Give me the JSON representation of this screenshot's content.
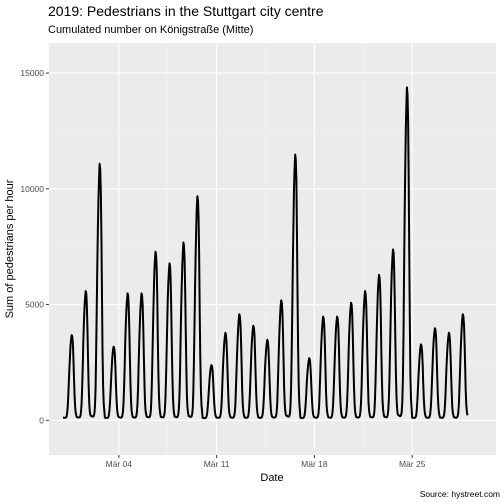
{
  "chart_data": {
    "type": "line",
    "title": "2019: Pedestrians in the Stuttgart city centre",
    "subtitle": "Cumulated number on Königstraße (Mitte)",
    "xlabel": "Date",
    "ylabel": "Sum of pedestrians per hour",
    "caption": "Source: hystreet.com",
    "x_ticks": [
      "Mär 04",
      "Mär 11",
      "Mär 18",
      "Mär 25"
    ],
    "x_tick_values": [
      "2019-03-04",
      "2019-03-11",
      "2019-03-18",
      "2019-03-25"
    ],
    "xlim": [
      "2019-02-27",
      "2019-03-31"
    ],
    "ylim": [
      -1500,
      16300
    ],
    "y_ticks": [
      0,
      5000,
      10000,
      15000
    ],
    "y_tick_labels": [
      "0",
      "5000",
      "10000",
      "15000"
    ],
    "grid": true,
    "series_color": "#000000",
    "series": [
      {
        "resolution": "hourly",
        "daily": [
          {
            "date": "2019-02-28",
            "peak": 3600
          },
          {
            "date": "2019-03-01",
            "peak": 5500
          },
          {
            "date": "2019-03-02",
            "peak": 11000
          },
          {
            "date": "2019-03-03",
            "peak": 3100
          },
          {
            "date": "2019-03-04",
            "peak": 5400
          },
          {
            "date": "2019-03-05",
            "peak": 5400
          },
          {
            "date": "2019-03-06",
            "peak": 7200
          },
          {
            "date": "2019-03-07",
            "peak": 6700
          },
          {
            "date": "2019-03-08",
            "peak": 7600
          },
          {
            "date": "2019-03-09",
            "peak": 9600
          },
          {
            "date": "2019-03-10",
            "peak": 2300
          },
          {
            "date": "2019-03-11",
            "peak": 3700
          },
          {
            "date": "2019-03-12",
            "peak": 4500
          },
          {
            "date": "2019-03-13",
            "peak": 4000
          },
          {
            "date": "2019-03-14",
            "peak": 3400
          },
          {
            "date": "2019-03-15",
            "peak": 5100
          },
          {
            "date": "2019-03-16",
            "peak": 11400
          },
          {
            "date": "2019-03-17",
            "peak": 2600
          },
          {
            "date": "2019-03-18",
            "peak": 4400
          },
          {
            "date": "2019-03-19",
            "peak": 4400
          },
          {
            "date": "2019-03-20",
            "peak": 5000
          },
          {
            "date": "2019-03-21",
            "peak": 5500
          },
          {
            "date": "2019-03-22",
            "peak": 6200
          },
          {
            "date": "2019-03-23",
            "peak": 7300
          },
          {
            "date": "2019-03-24",
            "peak": 14300
          },
          {
            "date": "2019-03-25",
            "peak": 3200
          },
          {
            "date": "2019-03-26",
            "peak": 3900
          },
          {
            "date": "2019-03-27",
            "peak": 3700
          },
          {
            "date": "2019-03-28",
            "peak": 4500
          }
        ]
      }
    ]
  }
}
